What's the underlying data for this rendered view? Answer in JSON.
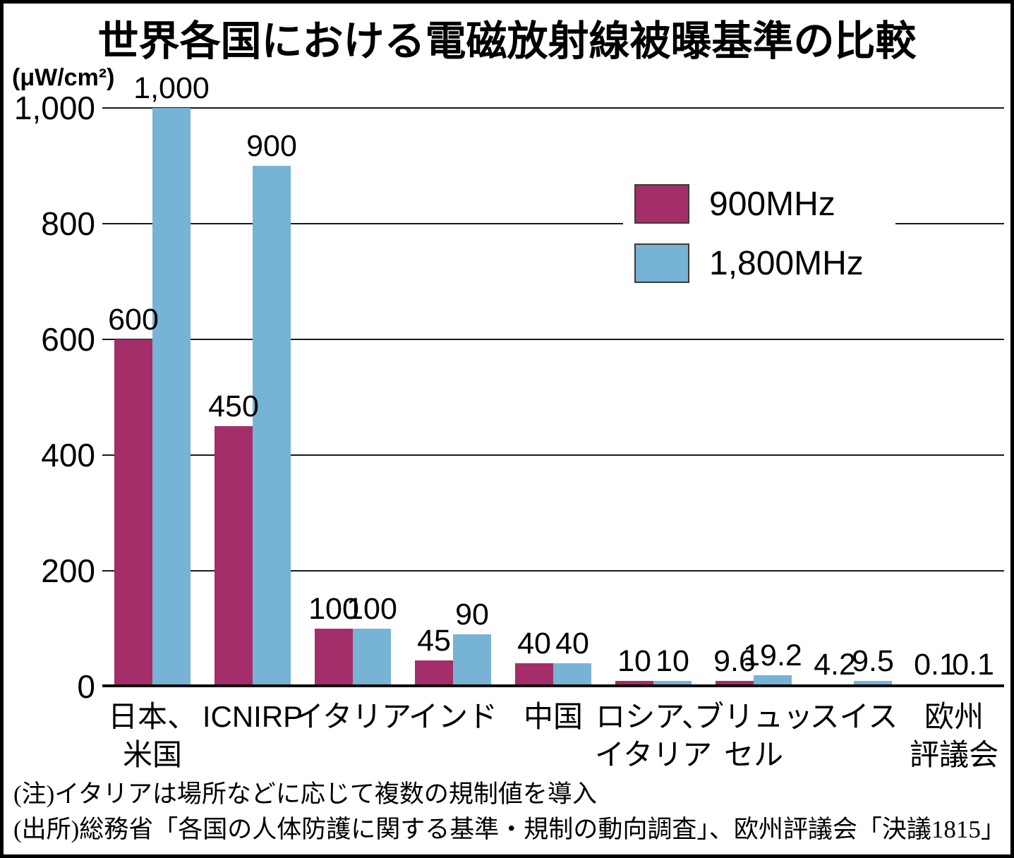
{
  "chart_data": {
    "type": "bar",
    "title": "世界各国における電磁放射線被曝基準の比較",
    "unit_label": "(μW/cm²)",
    "xlabel": "",
    "ylabel": "(μW/cm²)",
    "ylim": [
      0,
      1000
    ],
    "grid": true,
    "legend_position": "inside-upper-right",
    "yticks": [
      {
        "value": 0,
        "label": "0"
      },
      {
        "value": 200,
        "label": "200"
      },
      {
        "value": 400,
        "label": "400"
      },
      {
        "value": 600,
        "label": "600"
      },
      {
        "value": 800,
        "label": "800"
      },
      {
        "value": 1000,
        "label": "1,000"
      }
    ],
    "categories": [
      {
        "lines": [
          "日本、",
          "米国"
        ]
      },
      {
        "lines": [
          "ICNIRP"
        ]
      },
      {
        "lines": [
          "イタリア"
        ]
      },
      {
        "lines": [
          "インド"
        ]
      },
      {
        "lines": [
          "中国"
        ]
      },
      {
        "lines": [
          "ロシア、",
          "イタリア"
        ]
      },
      {
        "lines": [
          "ブリュッ",
          "セル"
        ]
      },
      {
        "lines": [
          "スイス"
        ]
      },
      {
        "lines": [
          "欧州",
          "評議会"
        ]
      }
    ],
    "series": [
      {
        "name": "900MHz",
        "color": "#a42e69",
        "values": [
          600,
          450,
          100,
          45,
          40,
          10,
          9.6,
          4.2,
          0.1
        ],
        "value_labels": [
          "600",
          "450",
          "100",
          "45",
          "40",
          "10",
          "9.6",
          "4.2",
          "0.1"
        ]
      },
      {
        "name": "1,800MHz",
        "color": "#77b3d5",
        "values": [
          1000,
          900,
          100,
          90,
          40,
          10,
          19.2,
          9.5,
          0.1
        ],
        "value_labels": [
          "1,000",
          "900",
          "100",
          "90",
          "40",
          "10",
          "19.2",
          "9.5",
          "0.1"
        ]
      }
    ]
  },
  "notes": {
    "note": "(注)イタリアは場所などに応じて複数の規制値を導入",
    "source": "(出所)総務省「各国の人体防護に関する基準・規制の動向調査」、欧州評議会「決議1815」"
  }
}
